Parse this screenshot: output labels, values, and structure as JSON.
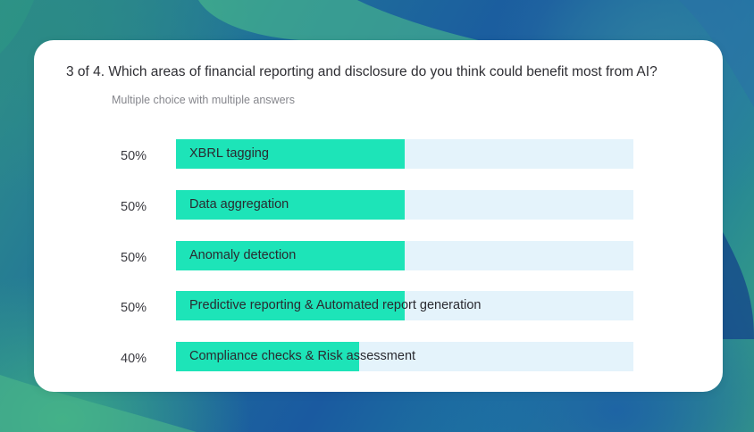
{
  "question": {
    "text": "3 of 4. Which areas of financial reporting and disclosure do you think could benefit most from AI?",
    "subtitle": "Multiple choice with multiple answers"
  },
  "options": [
    {
      "label": "XBRL tagging",
      "percent_label": "50%",
      "fraction": 0.5
    },
    {
      "label": "Data aggregation",
      "percent_label": "50%",
      "fraction": 0.5
    },
    {
      "label": "Anomaly detection",
      "percent_label": "50%",
      "fraction": 0.5
    },
    {
      "label": "Predictive reporting & Automated report generation",
      "percent_label": "50%",
      "fraction": 0.5
    },
    {
      "label": "Compliance checks & Risk assessment",
      "percent_label": "40%",
      "fraction": 0.4
    }
  ],
  "colors": {
    "fill": "#1de4b8",
    "track": "#e4f3fb",
    "card": "#ffffff"
  }
}
